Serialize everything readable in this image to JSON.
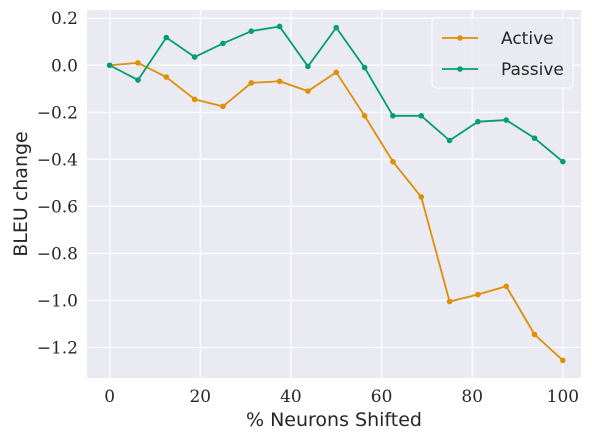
{
  "chart_data": {
    "type": "line",
    "xlabel": "% Neurons Shifted",
    "ylabel": "BLEU change",
    "xlim": [
      -5,
      104
    ],
    "ylim": [
      -1.33,
      0.235
    ],
    "xticks": [
      0,
      20,
      40,
      60,
      80,
      100
    ],
    "xtick_labels": [
      "0",
      "20",
      "40",
      "60",
      "80",
      "100"
    ],
    "yticks": [
      0.2,
      0.0,
      -0.2,
      -0.4,
      -0.6,
      -0.8,
      -1.0,
      -1.2
    ],
    "ytick_labels": [
      "0.2",
      "0.0",
      "−0.2",
      "−0.4",
      "−0.6",
      "−0.8",
      "−1.0",
      "−1.2"
    ],
    "grid": true,
    "legend_position": "top-right",
    "x": [
      0,
      6.25,
      12.5,
      18.75,
      25,
      31.25,
      37.5,
      43.75,
      50,
      56.25,
      62.5,
      68.75,
      75,
      81.25,
      87.5,
      93.75,
      100
    ],
    "series": [
      {
        "name": "Active",
        "color": "#de8f05",
        "values": [
          0.0,
          0.01,
          -0.05,
          -0.145,
          -0.175,
          -0.075,
          -0.068,
          -0.11,
          -0.03,
          -0.215,
          -0.41,
          -0.56,
          -1.005,
          -0.975,
          -0.94,
          -1.145,
          -1.255
        ]
      },
      {
        "name": "Passive",
        "color": "#029e73",
        "values": [
          0.0,
          -0.063,
          0.118,
          0.035,
          0.093,
          0.145,
          0.165,
          -0.005,
          0.16,
          -0.01,
          -0.215,
          -0.215,
          -0.32,
          -0.24,
          -0.233,
          -0.31,
          -0.41
        ]
      }
    ],
    "colors": {
      "plot_background": "#eaeaf2",
      "grid": "#ffffff",
      "text": "#262626"
    }
  }
}
